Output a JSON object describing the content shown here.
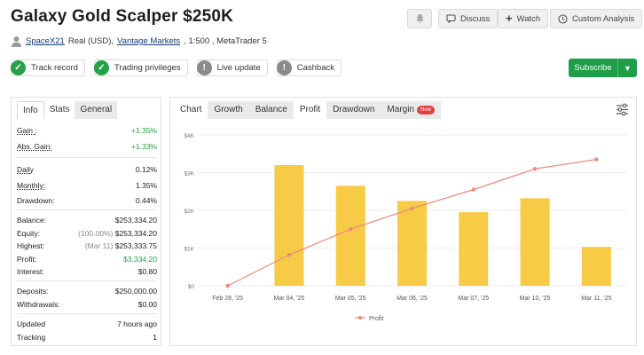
{
  "header": {
    "title": "Galaxy Gold Scalper $250K",
    "discuss_label": "Discuss",
    "watch_label": "Watch",
    "custom_analysis_label": "Custom Analysis"
  },
  "account": {
    "user": "SpaceX21",
    "type": "Real (USD),",
    "broker": "Vantage Markets",
    "details": ", 1:500 , MetaTrader 5"
  },
  "badges": [
    {
      "label": "Track record",
      "status": "verified"
    },
    {
      "label": "Trading privileges",
      "status": "verified"
    },
    {
      "label": "Live update",
      "status": "info"
    },
    {
      "label": "Cashback",
      "status": "info"
    }
  ],
  "subscribe_label": "Subscribe",
  "stats_tabs": [
    "Info",
    "Stats",
    "General"
  ],
  "stats": {
    "gain": {
      "label": "Gain :",
      "value": "+1.35%"
    },
    "abs_gain": {
      "label": "Abs. Gain:",
      "value": "+1.33%"
    },
    "daily": {
      "label": "Daily",
      "value": "0.12%"
    },
    "monthly": {
      "label": "Monthly:",
      "value": "1.35%"
    },
    "drawdown": {
      "label": "Drawdown:",
      "value": "0.44%"
    },
    "balance": {
      "label": "Balance:",
      "value": "$253,334.20"
    },
    "equity": {
      "label": "Equity:",
      "note": "(100.00%)",
      "value": "$253,334.20"
    },
    "highest": {
      "label": "Highest:",
      "note": "(Mar 11)",
      "value": "$253,333.75"
    },
    "profit": {
      "label": "Profit:",
      "value": "$3,334.20"
    },
    "interest": {
      "label": "Interest:",
      "value": "$0.80"
    },
    "deposits": {
      "label": "Deposits:",
      "value": "$250,000.00"
    },
    "withdrawals": {
      "label": "Withdrawals:",
      "value": "$0.00"
    },
    "updated": {
      "label": "Updated",
      "value": "7 hours ago"
    },
    "tracking": {
      "label": "Tracking",
      "value": "1"
    }
  },
  "chart_tabs": {
    "chart": "Chart",
    "growth": "Growth",
    "balance": "Balance",
    "profit": "Profit",
    "drawdown": "Drawdown",
    "margin": "Margin",
    "new_tag": "New"
  },
  "colors": {
    "bar": "#f7cb46",
    "line": "#ec8a7c",
    "accent_green": "#1f9e4a"
  },
  "chart_data": {
    "type": "bar",
    "categories": [
      "Feb 28, '25",
      "Mar 04, '25",
      "Mar 05, '25",
      "Mar 06, '25",
      "Mar 07, '25",
      "Mar 10, '25",
      "Mar 11, '25"
    ],
    "values": [
      0,
      3200,
      2650,
      2250,
      1950,
      2320,
      1030
    ],
    "series": [
      {
        "name": "Profit",
        "type": "line",
        "values": [
          0,
          820,
          1500,
          2050,
          2550,
          3100,
          3350
        ]
      }
    ],
    "ytick_labels": [
      "$4K",
      "$3K",
      "$2K",
      "$1K",
      "$0"
    ],
    "ylim": [
      0,
      4000
    ],
    "grid": true,
    "legend": "bottom",
    "legend_label": "Profit"
  }
}
